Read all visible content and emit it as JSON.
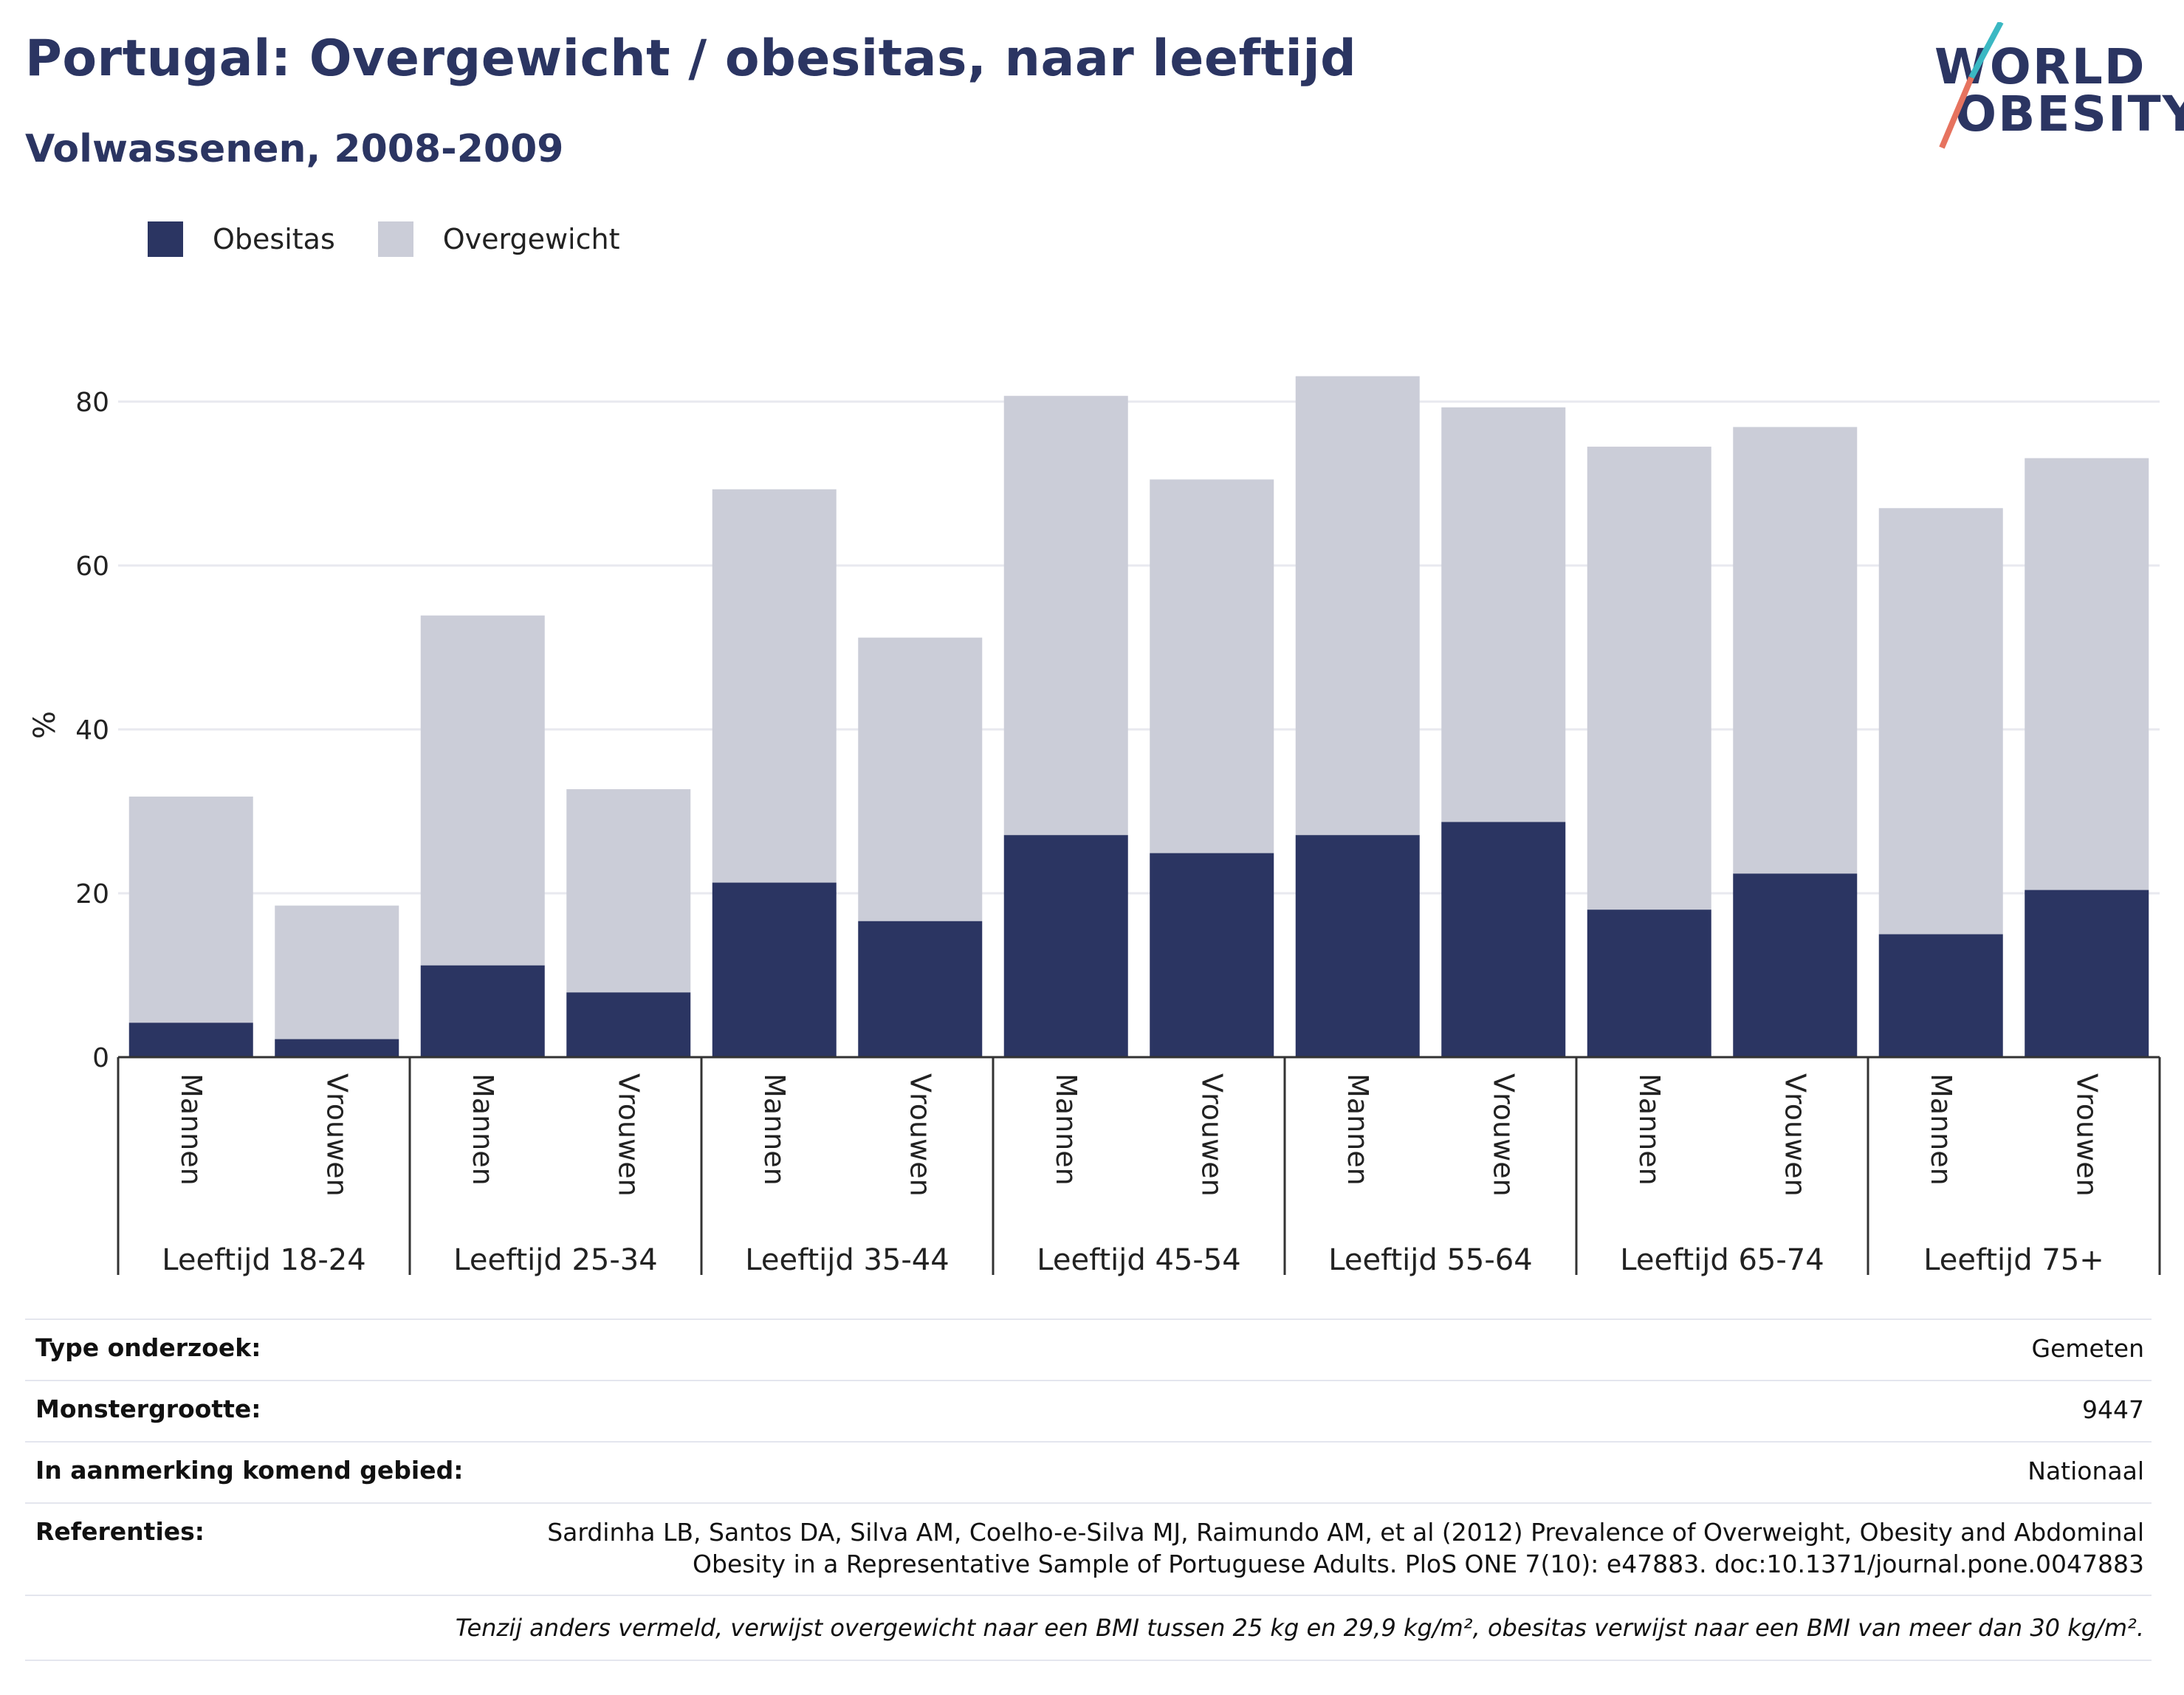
{
  "header": {
    "title": "Portugal: Overgewicht / obesitas, naar leeftijd",
    "subtitle": "Volwassenen, 2008-2009"
  },
  "logo": {
    "line1": "WORLD",
    "line2": "OBESITY"
  },
  "colors": {
    "obesitas": "#2b3562",
    "overgewicht": "#cbcdd8",
    "accent_teal": "#3bb8c3",
    "accent_coral": "#e6735f"
  },
  "chart_data": {
    "type": "bar",
    "stacked": true,
    "ylabel": "%",
    "ylim": [
      0,
      90
    ],
    "yticks": [
      0,
      20,
      40,
      60,
      80
    ],
    "grid": true,
    "legend_position": "top-left",
    "groups": [
      "Leeftijd 18-24",
      "Leeftijd 25-34",
      "Leeftijd 35-44",
      "Leeftijd 45-54",
      "Leeftijd 55-64",
      "Leeftijd 65-74",
      "Leeftijd 75+"
    ],
    "subcategories": [
      "Mannen",
      "Vrouwen"
    ],
    "series": [
      {
        "name": "Obesitas",
        "values": [
          4.2,
          2.2,
          11.2,
          7.9,
          21.3,
          16.6,
          27.1,
          24.9,
          27.1,
          28.7,
          18.0,
          22.4,
          15.0,
          20.4
        ]
      },
      {
        "name": "Overgewicht",
        "values": [
          27.6,
          16.3,
          42.7,
          24.8,
          48.0,
          34.6,
          53.6,
          45.6,
          56.0,
          50.6,
          56.5,
          54.5,
          52.0,
          52.7
        ]
      }
    ]
  },
  "info": {
    "rows": [
      {
        "label": "Type onderzoek:",
        "value": "Gemeten"
      },
      {
        "label": "Monstergrootte:",
        "value": "9447"
      },
      {
        "label": "In aanmerking komend gebied:",
        "value": "Nationaal"
      },
      {
        "label": "Referenties:",
        "value_line1": "Sardinha LB, Santos DA, Silva AM, Coelho-e-Silva MJ, Raimundo AM, et al (2012) Prevalence of Overweight, Obesity and Abdominal",
        "value_line2": "Obesity in a Representative Sample of Portuguese Adults. PloS ONE 7(10): e47883. doc:10.1371/journal.pone.0047883"
      }
    ],
    "footnote": "Tenzij anders vermeld, verwijst overgewicht naar een BMI tussen 25 kg en 29,9 kg/m², obesitas verwijst naar een BMI van meer dan 30 kg/m²."
  }
}
